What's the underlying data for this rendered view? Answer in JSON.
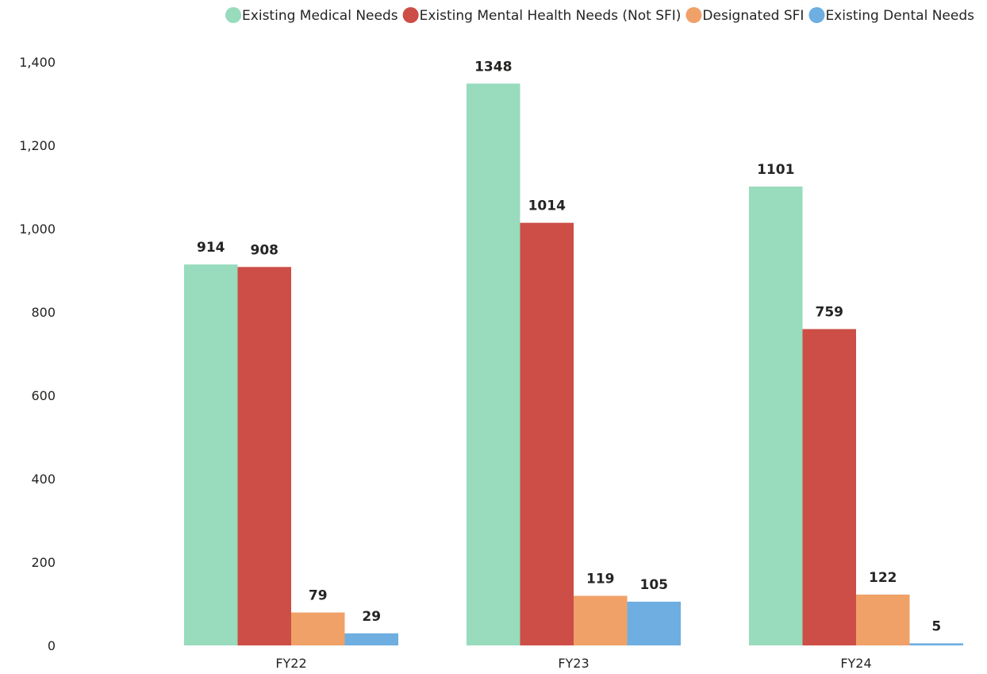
{
  "chart_data": {
    "type": "bar",
    "categories": [
      "FY22",
      "FY23",
      "FY24"
    ],
    "series": [
      {
        "name": "Existing Medical Needs",
        "color": "#98dbbd",
        "values": [
          914,
          1348,
          1101
        ]
      },
      {
        "name": "Existing Mental Health Needs (Not SFI)",
        "color": "#cc4e46",
        "values": [
          908,
          1014,
          759
        ]
      },
      {
        "name": "Designated SFI",
        "color": "#f0a168",
        "values": [
          79,
          119,
          122
        ]
      },
      {
        "name": "Existing Dental Needs",
        "color": "#6eaee0",
        "values": [
          29,
          105,
          5
        ]
      }
    ],
    "ylim": [
      0,
      1400
    ],
    "yticks": [
      0,
      200,
      400,
      600,
      800,
      1000,
      1200,
      1400
    ],
    "ytick_labels": [
      "0",
      "200",
      "400",
      "600",
      "800",
      "1,000",
      "1,200",
      "1,400"
    ],
    "legend_position": "top-right",
    "grid": false,
    "title": "",
    "xlabel": "",
    "ylabel": ""
  }
}
